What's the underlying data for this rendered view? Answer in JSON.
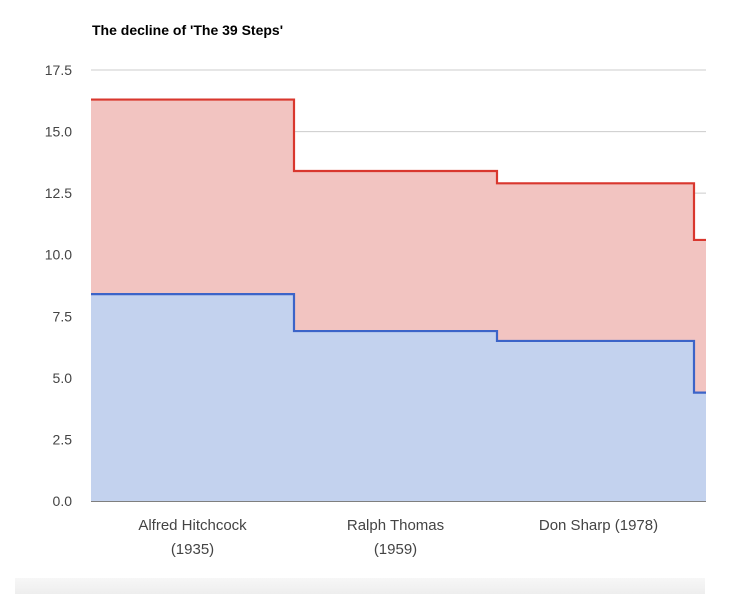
{
  "chart_data": {
    "type": "area",
    "subtype": "stepped-stacked",
    "title": "The decline of 'The 39 Steps'",
    "categories": [
      "Alfred Hitchcock\n(1935)",
      "Ralph Thomas\n(1959)",
      "Don Sharp (1978)",
      ""
    ],
    "series": [
      {
        "values": [
          8.4,
          6.9,
          6.5,
          4.4
        ],
        "color": "#3c64c8",
        "fill": "#c3d2ee"
      },
      {
        "values": [
          16.3,
          13.4,
          12.9,
          10.6
        ],
        "color": "#d9372e",
        "fill": "#f2c4c1"
      }
    ],
    "ylim": [
      0,
      17.5
    ],
    "yticks": [
      "0.0",
      "2.5",
      "5.0",
      "7.5",
      "10.0",
      "12.5",
      "15.0",
      "17.5"
    ],
    "grid": true,
    "legend": "none"
  }
}
